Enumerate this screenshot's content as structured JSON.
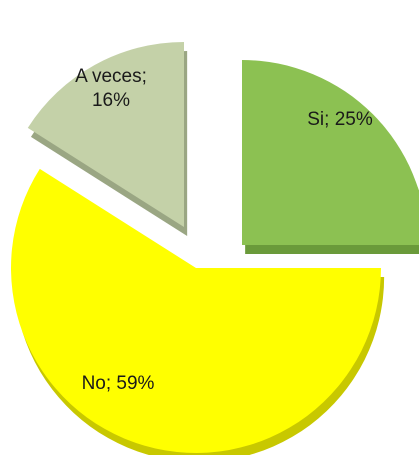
{
  "chart_data": {
    "type": "pie",
    "style": "3d-exploded",
    "title": "",
    "legend": "none",
    "slices": [
      {
        "label": "Si",
        "value": 25,
        "display": [
          "Si; 25%"
        ],
        "color": "#8cc152",
        "side_color": "#6a9a3a"
      },
      {
        "label": "No",
        "value": 59,
        "display": [
          "No; 59%"
        ],
        "color": "#ffff00",
        "side_color": "#c8c800"
      },
      {
        "label": "A veces",
        "value": 16,
        "display": [
          "A veces;",
          "16%"
        ],
        "color": "#c4d1a8",
        "side_color": "#9aa683"
      }
    ]
  }
}
